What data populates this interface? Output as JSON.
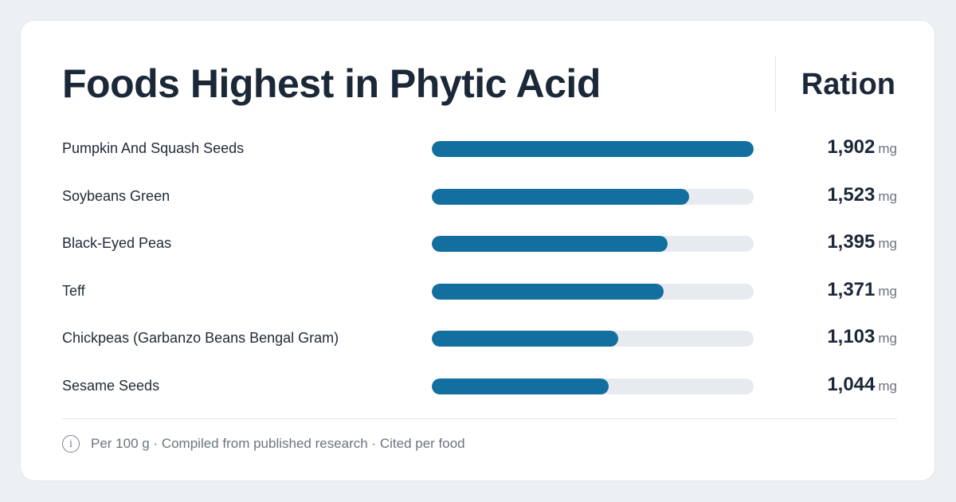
{
  "header": {
    "title": "Foods Highest in Phytic Acid",
    "column_title": "Ration"
  },
  "footer": {
    "info_icon": "info-icon",
    "note": "Per 100 g · Compiled from published research · Cited per food"
  },
  "colors": {
    "bar": "#136f9f",
    "track": "#e7ebf0",
    "text": "#1b2838",
    "muted": "#6b7480",
    "background": "#edf0f3"
  },
  "chart_data": {
    "type": "bar",
    "orientation": "horizontal",
    "title": "Foods Highest in Phytic Acid",
    "unit": "mg",
    "xlim": [
      0,
      1902
    ],
    "grid": false,
    "categories": [
      "Pumpkin And Squash Seeds",
      "Soybeans Green",
      "Black-Eyed Peas",
      "Teff",
      "Chickpeas (Garbanzo Beans Bengal Gram)",
      "Sesame Seeds"
    ],
    "values": [
      1902,
      1523,
      1395,
      1371,
      1103,
      1044
    ],
    "value_labels": [
      "1,902",
      "1,523",
      "1,395",
      "1,371",
      "1,103",
      "1,044"
    ]
  }
}
